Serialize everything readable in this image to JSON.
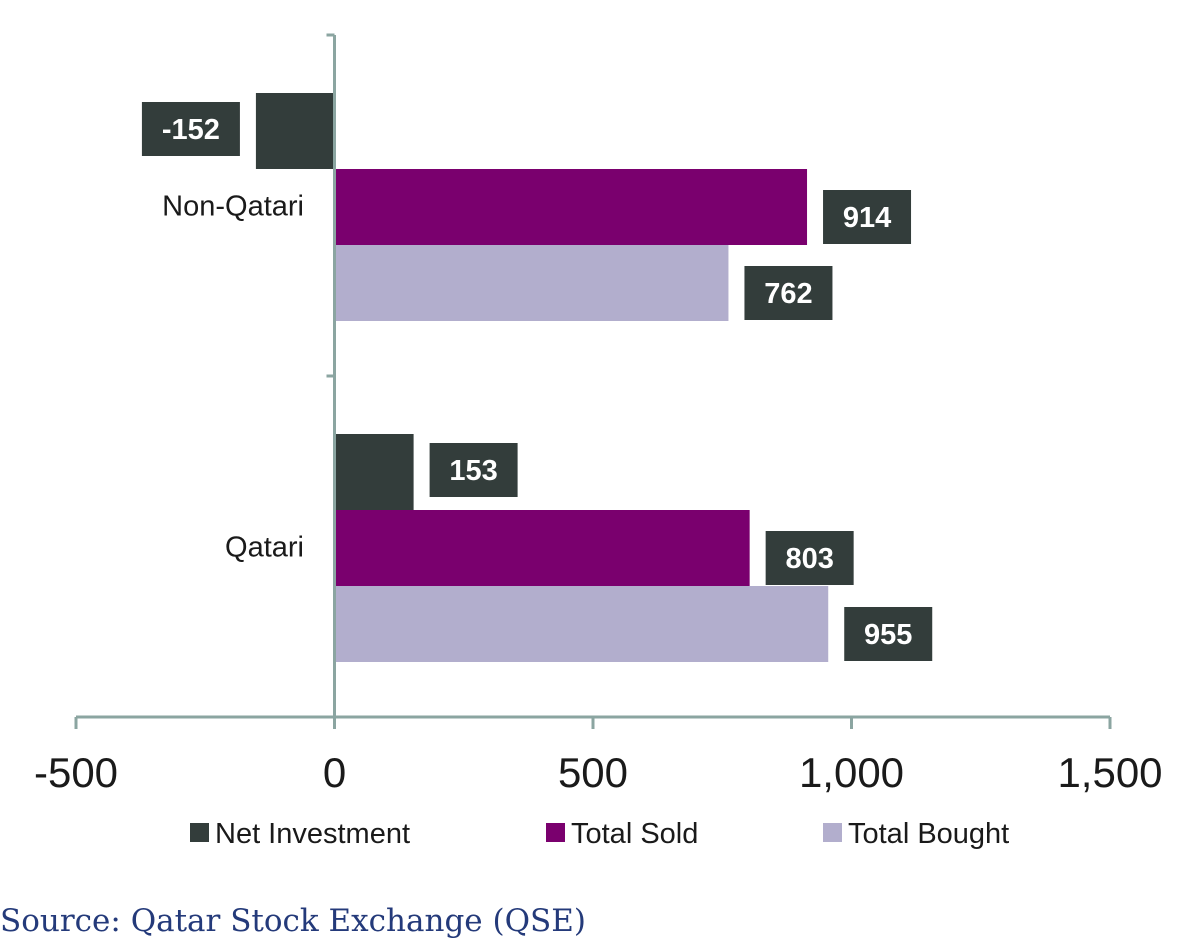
{
  "chart_data": {
    "type": "bar",
    "orientation": "horizontal",
    "categories": [
      "Non-Qatari",
      "Qatari"
    ],
    "series": [
      {
        "name": "Net Investment",
        "color": "#333d3b",
        "values": [
          -152,
          153
        ]
      },
      {
        "name": "Total Sold",
        "color": "#7a006e",
        "values": [
          914,
          803
        ]
      },
      {
        "name": "Total Bought",
        "color": "#b2aecd",
        "values": [
          762,
          955
        ]
      }
    ],
    "xlim": [
      -500,
      1500
    ],
    "xticks": [
      -500,
      0,
      500,
      1000,
      1500
    ],
    "xtick_labels": [
      "-500",
      "0",
      "500",
      "1,000",
      "1,500"
    ],
    "data_labels": [
      [
        "-152",
        "914",
        "762"
      ],
      [
        "153",
        "803",
        "955"
      ]
    ],
    "label_box_color": "#333d3b",
    "axis_color": "#8ba5a1",
    "legend_position": "bottom",
    "grid": false,
    "title": "",
    "xlabel": "",
    "ylabel": ""
  },
  "source_text": "Source: Qatar Stock Exchange (QSE)"
}
